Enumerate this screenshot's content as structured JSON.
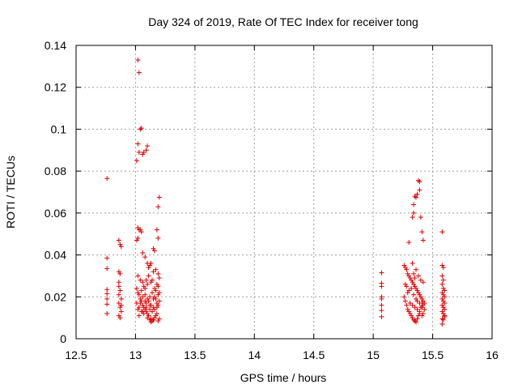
{
  "chart_data": {
    "type": "scatter",
    "title": "Day 324 of 2019, Rate Of TEC Index for receiver tong",
    "xlabel": "GPS time / hours",
    "ylabel": "ROTI / TECUs",
    "xlim": [
      12.5,
      16
    ],
    "ylim": [
      0,
      0.14
    ],
    "xticks": [
      12.5,
      13,
      13.5,
      14,
      14.5,
      15,
      15.5,
      16
    ],
    "xtick_labels": [
      "12.5",
      "13",
      "13.5",
      "14",
      "14.5",
      "15",
      "15.5",
      "16"
    ],
    "yticks": [
      0,
      0.02,
      0.04,
      0.06,
      0.08,
      0.1,
      0.12,
      0.14
    ],
    "ytick_labels": [
      "0",
      "0.02",
      "0.04",
      "0.06",
      "0.08",
      "0.1",
      "0.12",
      "0.14"
    ],
    "grid": true,
    "marker": "+",
    "color": "#e00000",
    "series": [
      {
        "name": "ROTI",
        "points": [
          [
            12.76,
            0.0765
          ],
          [
            12.76,
            0.0385
          ],
          [
            12.76,
            0.0335
          ],
          [
            12.76,
            0.0235
          ],
          [
            12.76,
            0.0215
          ],
          [
            12.76,
            0.019
          ],
          [
            12.76,
            0.0165
          ],
          [
            12.76,
            0.012
          ],
          [
            12.86,
            0.047
          ],
          [
            12.87,
            0.045
          ],
          [
            12.88,
            0.044
          ],
          [
            12.86,
            0.032
          ],
          [
            12.87,
            0.031
          ],
          [
            12.86,
            0.027
          ],
          [
            12.87,
            0.023
          ],
          [
            12.86,
            0.021
          ],
          [
            12.88,
            0.019
          ],
          [
            12.86,
            0.017
          ],
          [
            12.87,
            0.015
          ],
          [
            12.88,
            0.013
          ],
          [
            12.86,
            0.011
          ],
          [
            12.87,
            0.01
          ],
          [
            12.88,
            0.016
          ],
          [
            12.86,
            0.025
          ],
          [
            13.02,
            0.133
          ],
          [
            13.03,
            0.127
          ],
          [
            13.04,
            0.1
          ],
          [
            13.05,
            0.1005
          ],
          [
            13.02,
            0.093
          ],
          [
            13.03,
            0.089
          ],
          [
            13.06,
            0.088
          ],
          [
            13.07,
            0.089
          ],
          [
            13.09,
            0.09
          ],
          [
            13.1,
            0.092
          ],
          [
            13.01,
            0.085
          ],
          [
            13.02,
            0.053
          ],
          [
            13.03,
            0.052
          ],
          [
            13.04,
            0.052
          ],
          [
            13.05,
            0.051
          ],
          [
            13.02,
            0.048
          ],
          [
            13.01,
            0.047
          ],
          [
            13.06,
            0.041
          ],
          [
            13.08,
            0.039
          ],
          [
            13.1,
            0.036
          ],
          [
            13.12,
            0.035
          ],
          [
            13.15,
            0.043
          ],
          [
            13.16,
            0.042
          ],
          [
            13.18,
            0.052
          ],
          [
            13.19,
            0.048
          ],
          [
            13.2,
            0.0675
          ],
          [
            13.19,
            0.063
          ],
          [
            13.01,
            0.024
          ],
          [
            13.02,
            0.022
          ],
          [
            13.03,
            0.021
          ],
          [
            13.04,
            0.019
          ],
          [
            13.05,
            0.018
          ],
          [
            13.06,
            0.016
          ],
          [
            13.07,
            0.015
          ],
          [
            13.08,
            0.014
          ],
          [
            13.09,
            0.013
          ],
          [
            13.1,
            0.012
          ],
          [
            13.11,
            0.011
          ],
          [
            13.12,
            0.009
          ],
          [
            13.13,
            0.008
          ],
          [
            13.14,
            0.0085
          ],
          [
            13.15,
            0.009
          ],
          [
            13.16,
            0.01
          ],
          [
            13.17,
            0.011
          ],
          [
            13.18,
            0.012
          ],
          [
            13.19,
            0.0085
          ],
          [
            13.2,
            0.0095
          ],
          [
            13.01,
            0.017
          ],
          [
            13.03,
            0.015
          ],
          [
            13.05,
            0.023
          ],
          [
            13.07,
            0.025
          ],
          [
            13.09,
            0.028
          ],
          [
            13.11,
            0.03
          ],
          [
            13.13,
            0.027
          ],
          [
            13.15,
            0.032
          ],
          [
            13.17,
            0.033
          ],
          [
            13.19,
            0.031
          ],
          [
            13.2,
            0.029
          ],
          [
            13.18,
            0.026
          ],
          [
            13.16,
            0.024
          ],
          [
            13.14,
            0.022
          ],
          [
            13.12,
            0.02
          ],
          [
            13.1,
            0.019
          ],
          [
            13.08,
            0.021
          ],
          [
            13.06,
            0.02
          ],
          [
            13.04,
            0.017
          ],
          [
            13.02,
            0.014
          ],
          [
            13.05,
            0.013
          ],
          [
            13.07,
            0.012
          ],
          [
            13.09,
            0.017
          ],
          [
            13.11,
            0.018
          ],
          [
            13.13,
            0.016
          ],
          [
            13.15,
            0.015
          ],
          [
            13.17,
            0.019
          ],
          [
            13.19,
            0.021
          ],
          [
            13.2,
            0.018
          ],
          [
            13.18,
            0.017
          ],
          [
            13.16,
            0.02
          ],
          [
            13.14,
            0.013
          ],
          [
            13.12,
            0.014
          ],
          [
            13.1,
            0.026
          ],
          [
            13.08,
            0.024
          ],
          [
            13.06,
            0.027
          ],
          [
            13.04,
            0.028
          ],
          [
            13.02,
            0.03
          ],
          [
            13.11,
            0.034
          ],
          [
            13.13,
            0.036
          ],
          [
            13.14,
            0.028
          ],
          [
            13.17,
            0.023
          ],
          [
            13.19,
            0.025
          ],
          [
            13.2,
            0.022
          ],
          [
            13.15,
            0.019
          ],
          [
            13.12,
            0.016
          ],
          [
            13.09,
            0.015
          ],
          [
            13.06,
            0.013
          ],
          [
            13.03,
            0.011
          ],
          [
            13.1,
            0.01
          ],
          [
            13.13,
            0.0095
          ],
          [
            13.16,
            0.014
          ],
          [
            13.19,
            0.016
          ],
          [
            13.18,
            0.015
          ],
          [
            13.08,
            0.018
          ],
          [
            15.07,
            0.0315
          ],
          [
            15.07,
            0.0265
          ],
          [
            15.07,
            0.025
          ],
          [
            15.07,
            0.02
          ],
          [
            15.07,
            0.019
          ],
          [
            15.07,
            0.016
          ],
          [
            15.07,
            0.0135
          ],
          [
            15.07,
            0.0105
          ],
          [
            15.3,
            0.046
          ],
          [
            15.33,
            0.058
          ],
          [
            15.34,
            0.06
          ],
          [
            15.34,
            0.064
          ],
          [
            15.35,
            0.068
          ],
          [
            15.36,
            0.0675
          ],
          [
            15.37,
            0.069
          ],
          [
            15.38,
            0.0755
          ],
          [
            15.39,
            0.075
          ],
          [
            15.39,
            0.071
          ],
          [
            15.4,
            0.058
          ],
          [
            15.41,
            0.051
          ],
          [
            15.42,
            0.047
          ],
          [
            15.26,
            0.035
          ],
          [
            15.27,
            0.034
          ],
          [
            15.28,
            0.033
          ],
          [
            15.29,
            0.031
          ],
          [
            15.3,
            0.03
          ],
          [
            15.31,
            0.029
          ],
          [
            15.32,
            0.028
          ],
          [
            15.33,
            0.027
          ],
          [
            15.34,
            0.026
          ],
          [
            15.35,
            0.025
          ],
          [
            15.36,
            0.024
          ],
          [
            15.37,
            0.023
          ],
          [
            15.38,
            0.022
          ],
          [
            15.39,
            0.021
          ],
          [
            15.4,
            0.02
          ],
          [
            15.41,
            0.019
          ],
          [
            15.42,
            0.018
          ],
          [
            15.43,
            0.017
          ],
          [
            15.42,
            0.016
          ],
          [
            15.41,
            0.015
          ],
          [
            15.26,
            0.02
          ],
          [
            15.27,
            0.018
          ],
          [
            15.28,
            0.016
          ],
          [
            15.29,
            0.014
          ],
          [
            15.3,
            0.013
          ],
          [
            15.31,
            0.012
          ],
          [
            15.32,
            0.011
          ],
          [
            15.33,
            0.01
          ],
          [
            15.34,
            0.009
          ],
          [
            15.35,
            0.0085
          ],
          [
            15.36,
            0.008
          ],
          [
            15.37,
            0.0095
          ],
          [
            15.38,
            0.011
          ],
          [
            15.39,
            0.013
          ],
          [
            15.4,
            0.015
          ],
          [
            15.41,
            0.017
          ],
          [
            15.42,
            0.012
          ],
          [
            15.43,
            0.014
          ],
          [
            15.34,
            0.021
          ],
          [
            15.36,
            0.019
          ],
          [
            15.28,
            0.025
          ],
          [
            15.3,
            0.023
          ],
          [
            15.32,
            0.024
          ],
          [
            15.34,
            0.031
          ],
          [
            15.36,
            0.033
          ],
          [
            15.38,
            0.03
          ],
          [
            15.4,
            0.028
          ],
          [
            15.42,
            0.027
          ],
          [
            15.31,
            0.017
          ],
          [
            15.33,
            0.016
          ],
          [
            15.35,
            0.015
          ],
          [
            15.37,
            0.014
          ],
          [
            15.39,
            0.012
          ],
          [
            15.41,
            0.011
          ],
          [
            15.29,
            0.022
          ],
          [
            15.27,
            0.026
          ],
          [
            15.33,
            0.036
          ],
          [
            15.35,
            0.029
          ],
          [
            15.37,
            0.018
          ],
          [
            15.39,
            0.017
          ],
          [
            15.58,
            0.051
          ],
          [
            15.58,
            0.035
          ],
          [
            15.59,
            0.034
          ],
          [
            15.58,
            0.03
          ],
          [
            15.59,
            0.028
          ],
          [
            15.58,
            0.026
          ],
          [
            15.59,
            0.024
          ],
          [
            15.6,
            0.023
          ],
          [
            15.58,
            0.022
          ],
          [
            15.59,
            0.021
          ],
          [
            15.6,
            0.02
          ],
          [
            15.58,
            0.019
          ],
          [
            15.59,
            0.018
          ],
          [
            15.6,
            0.017
          ],
          [
            15.58,
            0.016
          ],
          [
            15.59,
            0.015
          ],
          [
            15.6,
            0.014
          ],
          [
            15.58,
            0.013
          ],
          [
            15.59,
            0.012
          ],
          [
            15.6,
            0.011
          ],
          [
            15.58,
            0.0095
          ],
          [
            15.59,
            0.009
          ],
          [
            15.6,
            0.0105
          ],
          [
            15.58,
            0.007
          ]
        ]
      }
    ]
  }
}
